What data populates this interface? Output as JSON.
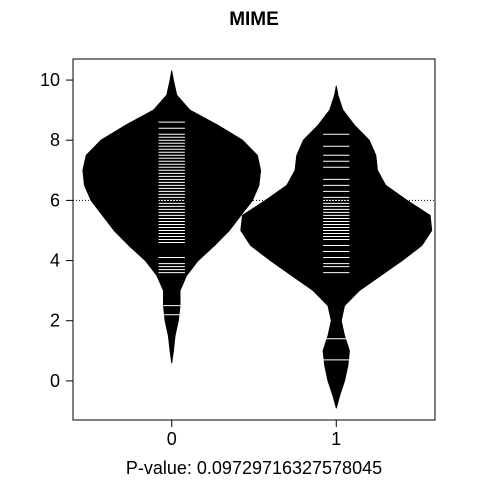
{
  "chart_data": {
    "type": "beanplot",
    "title": "MIME",
    "xlabel": "P-value: 0.09729716327578045",
    "ylabel": "",
    "categories": [
      "0",
      "1"
    ],
    "ylim": [
      -1.3,
      10.7
    ],
    "xlim": [
      -0.6,
      1.6
    ],
    "yticks": [
      0,
      2,
      4,
      6,
      8,
      10
    ],
    "overall_mean": 6.0,
    "grid": false,
    "legend": "none",
    "colors": {
      "bean": "#000000",
      "lines": "#ffffff",
      "background": "#ffffff"
    },
    "series": [
      {
        "name": "0",
        "mean": 6.3,
        "density": [
          [
            0.6,
            0.0
          ],
          [
            1.0,
            0.01
          ],
          [
            1.5,
            0.02
          ],
          [
            2.0,
            0.04
          ],
          [
            2.5,
            0.05
          ],
          [
            3.0,
            0.05
          ],
          [
            3.5,
            0.09
          ],
          [
            4.0,
            0.16
          ],
          [
            4.5,
            0.26
          ],
          [
            5.0,
            0.35
          ],
          [
            5.5,
            0.42
          ],
          [
            6.0,
            0.49
          ],
          [
            6.5,
            0.53
          ],
          [
            7.0,
            0.54
          ],
          [
            7.5,
            0.52
          ],
          [
            8.0,
            0.43
          ],
          [
            8.5,
            0.28
          ],
          [
            9.0,
            0.11
          ],
          [
            9.5,
            0.03
          ],
          [
            10.0,
            0.01
          ],
          [
            10.3,
            0.0
          ]
        ],
        "points": [
          2.2,
          2.5,
          3.6,
          3.7,
          3.8,
          3.9,
          4.1,
          4.6,
          4.7,
          4.8,
          4.9,
          5.0,
          5.1,
          5.2,
          5.3,
          5.4,
          5.5,
          5.6,
          5.7,
          5.8,
          5.9,
          6.0,
          6.1,
          6.2,
          6.3,
          6.4,
          6.5,
          6.6,
          6.7,
          6.8,
          6.9,
          7.0,
          7.1,
          7.2,
          7.3,
          7.4,
          7.5,
          7.6,
          7.7,
          7.8,
          7.9,
          8.0,
          8.1,
          8.2,
          8.4,
          8.6
        ]
      },
      {
        "name": "1",
        "mean": 5.45,
        "density": [
          [
            -0.9,
            0.0
          ],
          [
            -0.5,
            0.02
          ],
          [
            0.0,
            0.05
          ],
          [
            0.5,
            0.07
          ],
          [
            1.0,
            0.08
          ],
          [
            1.5,
            0.05
          ],
          [
            2.0,
            0.03
          ],
          [
            2.5,
            0.05
          ],
          [
            3.0,
            0.14
          ],
          [
            3.5,
            0.27
          ],
          [
            4.0,
            0.4
          ],
          [
            4.5,
            0.52
          ],
          [
            5.0,
            0.58
          ],
          [
            5.5,
            0.57
          ],
          [
            6.0,
            0.43
          ],
          [
            6.5,
            0.3
          ],
          [
            7.0,
            0.25
          ],
          [
            7.5,
            0.24
          ],
          [
            8.0,
            0.2
          ],
          [
            8.5,
            0.11
          ],
          [
            9.0,
            0.04
          ],
          [
            9.5,
            0.01
          ],
          [
            9.8,
            0.0
          ]
        ],
        "points": [
          0.7,
          1.4,
          3.6,
          3.8,
          3.9,
          4.1,
          4.3,
          4.5,
          4.7,
          4.8,
          4.9,
          5.0,
          5.1,
          5.2,
          5.3,
          5.4,
          5.5,
          5.6,
          5.7,
          5.8,
          5.9,
          6.0,
          6.1,
          6.3,
          6.5,
          6.7,
          7.1,
          7.3,
          7.5,
          7.8,
          8.2
        ]
      }
    ]
  }
}
